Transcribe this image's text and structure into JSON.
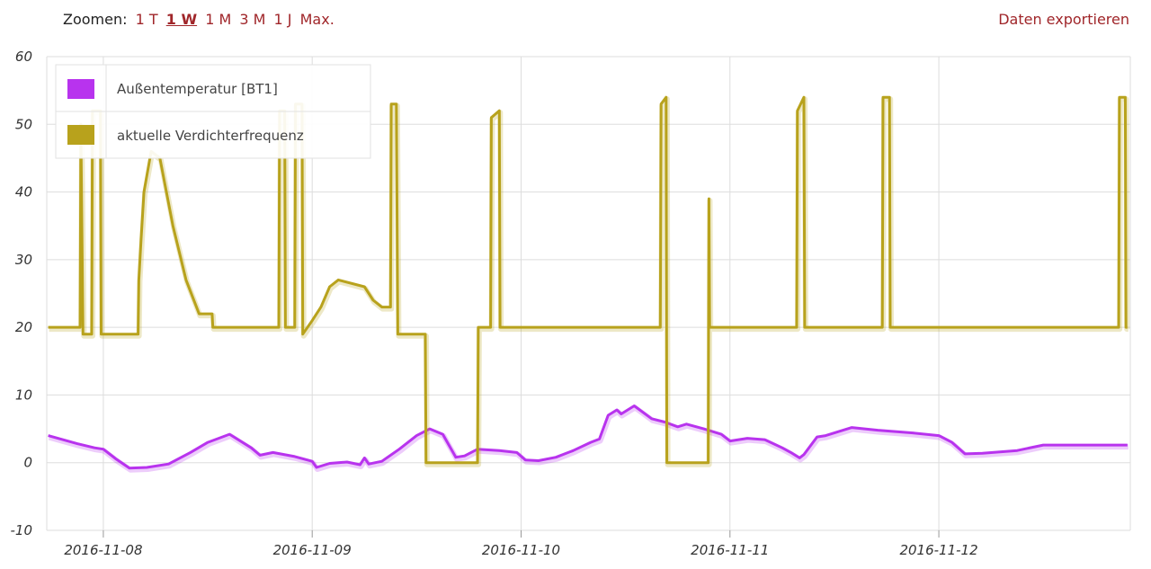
{
  "toolbar": {
    "zoom_label": "Zoomen:",
    "zoom_options": [
      "1 T",
      "1 W",
      "1 M",
      "3 M",
      "1 J",
      "Max."
    ],
    "active_zoom": "1 W",
    "export_label": "Daten exportieren"
  },
  "colors": {
    "series_1": "#b833ee",
    "series_2": "#b8a21c",
    "grid": "#dddddd",
    "accent": "#a0262a"
  },
  "chart_data": {
    "type": "line",
    "ylim": [
      -10,
      60
    ],
    "yticks": [
      -10,
      0,
      10,
      20,
      30,
      40,
      50,
      60
    ],
    "xlim": [
      "2016-11-07 17:30",
      "2016-11-12 22:00"
    ],
    "xticks": [
      "2016-11-08",
      "2016-11-09",
      "2016-11-10",
      "2016-11-11",
      "2016-11-12"
    ],
    "grid": true,
    "legend_position": "top-left",
    "series": [
      {
        "name": "Außentemperatur [BT1]",
        "color": "#b833ee",
        "points": [
          [
            "2016-11-07 17:40",
            4
          ],
          [
            "2016-11-07 21:00",
            2.8
          ],
          [
            "2016-11-07 23:00",
            2.2
          ],
          [
            "2016-11-08 00:00",
            2.0
          ],
          [
            "2016-11-08 01:30",
            0.5
          ],
          [
            "2016-11-08 03:00",
            -0.8
          ],
          [
            "2016-11-08 05:00",
            -0.7
          ],
          [
            "2016-11-08 07:30",
            -0.2
          ],
          [
            "2016-11-08 10:00",
            1.5
          ],
          [
            "2016-11-08 12:00",
            3.0
          ],
          [
            "2016-11-08 14:30",
            4.2
          ],
          [
            "2016-11-08 17:00",
            2.2
          ],
          [
            "2016-11-08 18:00",
            1.1
          ],
          [
            "2016-11-08 19:30",
            1.5
          ],
          [
            "2016-11-08 22:00",
            0.9
          ],
          [
            "2016-11-09 00:00",
            0.2
          ],
          [
            "2016-11-09 00:30",
            -0.7
          ],
          [
            "2016-11-09 02:00",
            -0.1
          ],
          [
            "2016-11-09 04:00",
            0.1
          ],
          [
            "2016-11-09 05:30",
            -0.3
          ],
          [
            "2016-11-09 06:00",
            0.7
          ],
          [
            "2016-11-09 06:30",
            -0.2
          ],
          [
            "2016-11-09 08:00",
            0.2
          ],
          [
            "2016-11-09 10:00",
            2.0
          ],
          [
            "2016-11-09 12:00",
            4.0
          ],
          [
            "2016-11-09 13:30",
            5.0
          ],
          [
            "2016-11-09 15:00",
            4.2
          ],
          [
            "2016-11-09 16:30",
            0.8
          ],
          [
            "2016-11-09 17:30",
            1.0
          ],
          [
            "2016-11-09 19:00",
            2.0
          ],
          [
            "2016-11-09 21:30",
            1.8
          ],
          [
            "2016-11-09 23:30",
            1.5
          ],
          [
            "2016-11-10 00:30",
            0.4
          ],
          [
            "2016-11-10 02:00",
            0.3
          ],
          [
            "2016-11-10 04:00",
            0.8
          ],
          [
            "2016-11-10 06:00",
            1.8
          ],
          [
            "2016-11-10 08:00",
            3.0
          ],
          [
            "2016-11-10 09:00",
            3.5
          ],
          [
            "2016-11-10 10:00",
            7.0
          ],
          [
            "2016-11-10 11:00",
            7.8
          ],
          [
            "2016-11-10 11:30",
            7.2
          ],
          [
            "2016-11-10 13:00",
            8.4
          ],
          [
            "2016-11-10 15:00",
            6.5
          ],
          [
            "2016-11-10 16:30",
            6.0
          ],
          [
            "2016-11-10 18:00",
            5.3
          ],
          [
            "2016-11-10 19:00",
            5.7
          ],
          [
            "2016-11-10 21:00",
            5.0
          ],
          [
            "2016-11-10 23:00",
            4.2
          ],
          [
            "2016-11-11 00:00",
            3.2
          ],
          [
            "2016-11-11 02:00",
            3.6
          ],
          [
            "2016-11-11 04:00",
            3.4
          ],
          [
            "2016-11-11 06:00",
            2.2
          ],
          [
            "2016-11-11 07:00",
            1.5
          ],
          [
            "2016-11-11 08:00",
            0.7
          ],
          [
            "2016-11-11 08:30",
            1.2
          ],
          [
            "2016-11-11 10:00",
            3.8
          ],
          [
            "2016-11-11 11:00",
            4.0
          ],
          [
            "2016-11-11 13:00",
            4.8
          ],
          [
            "2016-11-11 14:00",
            5.2
          ],
          [
            "2016-11-11 17:00",
            4.8
          ],
          [
            "2016-11-11 21:00",
            4.4
          ],
          [
            "2016-11-12 00:00",
            4.0
          ],
          [
            "2016-11-12 01:30",
            3.0
          ],
          [
            "2016-11-12 03:00",
            1.3
          ],
          [
            "2016-11-12 05:00",
            1.4
          ],
          [
            "2016-11-12 09:00",
            1.8
          ],
          [
            "2016-11-12 12:00",
            2.6
          ],
          [
            "2016-11-12 21:40",
            2.6
          ]
        ]
      },
      {
        "name": "aktuelle Verdichterfrequenz",
        "color": "#b8a21c",
        "points": [
          [
            "2016-11-07 17:40",
            20
          ],
          [
            "2016-11-07 21:20",
            20
          ],
          [
            "2016-11-07 21:25",
            50
          ],
          [
            "2016-11-07 21:40",
            19
          ],
          [
            "2016-11-07 22:40",
            19
          ],
          [
            "2016-11-07 22:45",
            52
          ],
          [
            "2016-11-07 23:40",
            52
          ],
          [
            "2016-11-07 23:45",
            19
          ],
          [
            "2016-11-08 04:00",
            19
          ],
          [
            "2016-11-08 04:05",
            27
          ],
          [
            "2016-11-08 04:20",
            33
          ],
          [
            "2016-11-08 04:40",
            40
          ],
          [
            "2016-11-08 05:30",
            46
          ],
          [
            "2016-11-08 06:30",
            45
          ],
          [
            "2016-11-08 08:00",
            35
          ],
          [
            "2016-11-08 09:30",
            27
          ],
          [
            "2016-11-08 11:00",
            22
          ],
          [
            "2016-11-08 12:30",
            22
          ],
          [
            "2016-11-08 12:35",
            20
          ],
          [
            "2016-11-08 20:10",
            20
          ],
          [
            "2016-11-08 20:15",
            52
          ],
          [
            "2016-11-08 20:50",
            52
          ],
          [
            "2016-11-08 20:55",
            20
          ],
          [
            "2016-11-08 22:00",
            20
          ],
          [
            "2016-11-08 22:05",
            53
          ],
          [
            "2016-11-08 22:50",
            53
          ],
          [
            "2016-11-08 22:55",
            19
          ],
          [
            "2016-11-09 00:00",
            21
          ],
          [
            "2016-11-09 01:00",
            23
          ],
          [
            "2016-11-09 02:00",
            26
          ],
          [
            "2016-11-09 03:00",
            27
          ],
          [
            "2016-11-09 06:00",
            26
          ],
          [
            "2016-11-09 07:00",
            24
          ],
          [
            "2016-11-09 08:00",
            23
          ],
          [
            "2016-11-09 09:00",
            23
          ],
          [
            "2016-11-09 09:05",
            53
          ],
          [
            "2016-11-09 09:40",
            53
          ],
          [
            "2016-11-09 09:50",
            19
          ],
          [
            "2016-11-09 13:00",
            19
          ],
          [
            "2016-11-09 13:05",
            0
          ],
          [
            "2016-11-09 19:00",
            0
          ],
          [
            "2016-11-09 19:05",
            20
          ],
          [
            "2016-11-09 20:30",
            20
          ],
          [
            "2016-11-09 20:35",
            51
          ],
          [
            "2016-11-09 21:30",
            52
          ],
          [
            "2016-11-09 21:35",
            20
          ],
          [
            "2016-11-10 16:00",
            20
          ],
          [
            "2016-11-10 16:05",
            53
          ],
          [
            "2016-11-10 16:40",
            54
          ],
          [
            "2016-11-10 16:45",
            0
          ],
          [
            "2016-11-10 21:30",
            0
          ],
          [
            "2016-11-10 21:35",
            39
          ],
          [
            "2016-11-10 21:40",
            20
          ],
          [
            "2016-11-11 07:40",
            20
          ],
          [
            "2016-11-11 07:45",
            52
          ],
          [
            "2016-11-11 08:30",
            54
          ],
          [
            "2016-11-11 08:35",
            20
          ],
          [
            "2016-11-11 17:30",
            20
          ],
          [
            "2016-11-11 17:35",
            54
          ],
          [
            "2016-11-11 18:20",
            54
          ],
          [
            "2016-11-11 18:25",
            20
          ],
          [
            "2016-11-12 20:40",
            20
          ],
          [
            "2016-11-12 20:45",
            54
          ],
          [
            "2016-11-12 21:25",
            54
          ],
          [
            "2016-11-12 21:30",
            20
          ],
          [
            "2016-11-12 21:40",
            20
          ]
        ]
      }
    ]
  }
}
